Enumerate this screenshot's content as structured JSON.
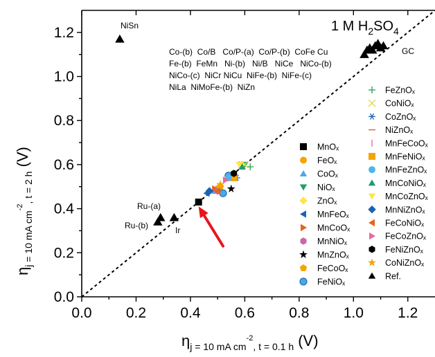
{
  "chart_data": {
    "type": "scatter",
    "xlim": [
      0,
      1.3
    ],
    "ylim": [
      0,
      1.3
    ],
    "xticks": [
      "0.0",
      "0.2",
      "0.4",
      "0.6",
      "0.8",
      "1.0",
      "1.2"
    ],
    "yticks": [
      "0.0",
      "0.2",
      "0.4",
      "0.6",
      "0.8",
      "1.0",
      "1.2"
    ],
    "xlabel": {
      "main": "η",
      "sub": "j = 10 mA cm",
      "sup": "-2",
      "tail": ", t = 0.1 h",
      "unit": " (V)"
    },
    "ylabel": {
      "main": "η",
      "sub": "j = 10 mA cm",
      "sup": "-2",
      "tail": ", t = 2 h",
      "unit": " (V)"
    },
    "condition": {
      "text": "1 M H",
      "sub": "2",
      "text2": "SO",
      "sub2": "4"
    },
    "reference_line": "y = x",
    "annotations": {
      "nisn": "NiSn",
      "gc": "GC",
      "ru_a": "Ru-(a)",
      "ru_b": "Ru-(b)",
      "ir": "Ir",
      "group_lines": [
        "Co-(b)  Co/B   Co/P-(a)  Co/P-(b)  CoFe Cu",
        "Fe-(b)  FeMn   Ni-(b)   Ni/B   NiCe   NiCo-(b)",
        "NiCo-(c)  NiCr NiCu  NiFe-(b)  NiFe-(c)",
        "NiLa  NiMoFe-(b)  NiZn"
      ]
    },
    "legend_left": [
      "MnOₓ",
      "FeOₓ",
      "CoOₓ",
      "NiOₓ",
      "ZnOₓ",
      "MnFeOₓ",
      "MnCoOₓ",
      "MnNiOₓ",
      "MnZnOₓ",
      "FeCoOₓ",
      "FeNiOₓ"
    ],
    "legend_right": [
      "FeZnOₓ",
      "CoNiOₓ",
      "CoZnOₓ",
      "NiZnOₓ",
      "MnFeCoOₓ",
      "MnFeNiOₓ",
      "MnFeZnOₓ",
      "MnCoNiOₓ",
      "MnCoZnOₓ",
      "MnNiZnOₓ",
      "FeCoNiOₓ",
      "FeCoZnOₓ",
      "FeNiZnOₓ",
      "CoNiZnOₓ",
      "Ref."
    ],
    "series": [
      {
        "name": "MnOₓ",
        "marker": "square",
        "color": "#000000",
        "x": [
          0.43
        ],
        "y": [
          0.43
        ]
      },
      {
        "name": "FeOₓ",
        "marker": "circle",
        "color": "#f5a400",
        "x": [
          0.5
        ],
        "y": [
          0.49
        ]
      },
      {
        "name": "CoOₓ",
        "marker": "triangle-up",
        "color": "#4da6e8",
        "x": [
          0.49
        ],
        "y": [
          0.48
        ]
      },
      {
        "name": "NiOₓ",
        "marker": "triangle-down",
        "color": "#1f9e6e",
        "x": [
          0.6
        ],
        "y": [
          0.6
        ]
      },
      {
        "name": "ZnOₓ",
        "marker": "diamond",
        "color": "#ffe44d",
        "x": [
          0.59
        ],
        "y": [
          0.6
        ]
      },
      {
        "name": "MnFeOₓ",
        "marker": "triangle-left",
        "color": "#1a63b5",
        "x": [
          0.46
        ],
        "y": [
          0.47
        ]
      },
      {
        "name": "MnCoOₓ",
        "marker": "triangle-right",
        "color": "#e8621a",
        "x": [
          0.49
        ],
        "y": [
          0.49
        ]
      },
      {
        "name": "MnNiOₓ",
        "marker": "hexagon",
        "color": "#c46aa8",
        "x": [
          0.5
        ],
        "y": [
          0.48
        ]
      },
      {
        "name": "MnZnOₓ",
        "marker": "star",
        "color": "#000000",
        "x": [
          0.55
        ],
        "y": [
          0.49
        ]
      },
      {
        "name": "FeCoOₓ",
        "marker": "pentagon",
        "color": "#f5a400",
        "x": [
          0.51
        ],
        "y": [
          0.5
        ]
      },
      {
        "name": "FeNiOₓ",
        "marker": "circle-ring",
        "color": "#4da6e8",
        "x": [
          0.52,
          0.54
        ],
        "y": [
          0.47,
          0.55
        ]
      },
      {
        "name": "FeZnOₓ",
        "marker": "plus",
        "color": "#2e9e4d",
        "x": [
          0.62
        ],
        "y": [
          0.59
        ]
      },
      {
        "name": "CoNiOₓ",
        "marker": "x",
        "color": "#d8d84a",
        "x": [
          0.6
        ],
        "y": [
          0.6
        ]
      },
      {
        "name": "CoZnOₓ",
        "marker": "asterisk",
        "color": "#1a63b5",
        "x": [
          0.57
        ],
        "y": [
          0.54
        ]
      },
      {
        "name": "NiZnOₓ",
        "marker": "hline",
        "color": "#e8621a",
        "x": [
          0.59
        ],
        "y": [
          0.58
        ]
      },
      {
        "name": "MnFeCoOₓ",
        "marker": "vline",
        "color": "#e86aa0",
        "x": [
          0.58
        ],
        "y": [
          0.6
        ]
      },
      {
        "name": "MnFeNiOₓ",
        "marker": "square",
        "color": "#f5a400",
        "x": [
          0.56
        ],
        "y": [
          0.54
        ]
      },
      {
        "name": "MnFeZnOₓ",
        "marker": "circle",
        "color": "#4db8e8",
        "x": [
          0.54
        ],
        "y": [
          0.54
        ]
      },
      {
        "name": "MnCoNiOₓ",
        "marker": "triangle-up",
        "color": "#1f9e6e",
        "x": [
          0.59
        ],
        "y": [
          0.59
        ]
      },
      {
        "name": "MnCoZnOₓ",
        "marker": "triangle-down",
        "color": "#ffe44d",
        "x": [
          0.58
        ],
        "y": [
          0.6
        ]
      },
      {
        "name": "MnNiZnOₓ",
        "marker": "diamond",
        "color": "#1a63b5",
        "x": [
          0.47
        ],
        "y": [
          0.48
        ]
      },
      {
        "name": "FeCoNiOₓ",
        "marker": "triangle-left",
        "color": "#e8621a",
        "x": [
          0.5
        ],
        "y": [
          0.48
        ]
      },
      {
        "name": "FeCoZnOₓ",
        "marker": "triangle-right",
        "color": "#e86aa0",
        "x": [
          0.53
        ],
        "y": [
          0.53
        ]
      },
      {
        "name": "FeNiZnOₓ",
        "marker": "hexagon",
        "color": "#000000",
        "x": [
          0.56
        ],
        "y": [
          0.56
        ]
      },
      {
        "name": "CoNiZnOₓ",
        "marker": "star",
        "color": "#f5a400",
        "x": [
          0.51
        ],
        "y": [
          0.51
        ]
      },
      {
        "name": "Ref.",
        "marker": "triangle-up",
        "color": "#000000",
        "x": [
          0.14,
          0.28,
          0.29,
          0.34,
          1.04,
          1.05,
          1.06,
          1.07,
          1.08,
          1.09,
          1.1,
          1.11
        ],
        "y": [
          1.17,
          0.34,
          0.36,
          0.36,
          1.1,
          1.12,
          1.13,
          1.12,
          1.14,
          1.15,
          1.13,
          1.14
        ]
      }
    ],
    "arrow": {
      "from": [
        0.52,
        0.23
      ],
      "to": [
        0.43,
        0.41
      ],
      "color": "#e8141c"
    }
  }
}
